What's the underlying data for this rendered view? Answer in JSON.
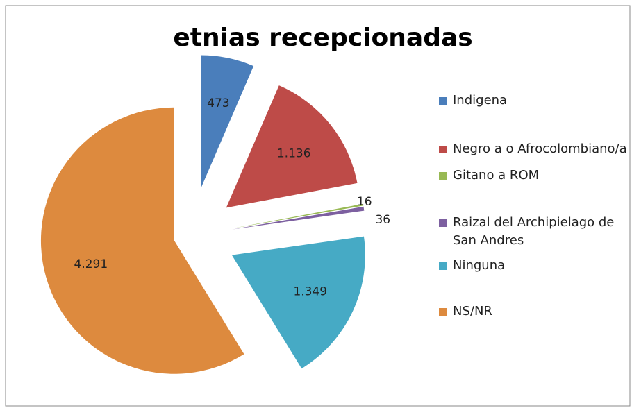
{
  "chart_data": {
    "type": "pie",
    "title": "etnias recepcionadas",
    "categories": [
      "Indigena",
      "Negro a o Afrocolombiano/a",
      "Gitano a ROM",
      "Raizal del Archipielago de San Andres",
      "Ninguna",
      "NS/NR"
    ],
    "values": [
      473,
      1136,
      16,
      36,
      1349,
      4291
    ],
    "value_labels": [
      "473",
      "1.136",
      "16",
      "36",
      "1.349",
      "4.291"
    ],
    "colors": [
      "#4a7ebb",
      "#be4b48",
      "#98b954",
      "#7d60a0",
      "#46aac5",
      "#dd8a3e"
    ],
    "legend": "right"
  }
}
